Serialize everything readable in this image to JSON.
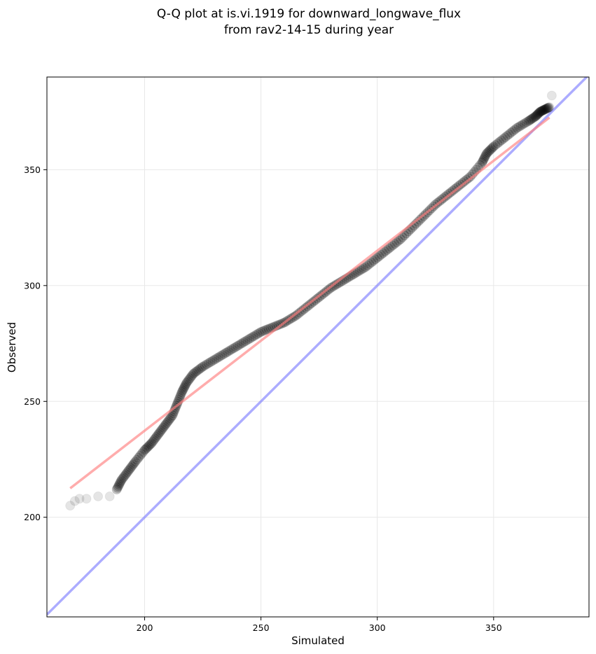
{
  "chart_data": {
    "type": "scatter",
    "title": [
      "Q-Q plot at is.vi.1919 for downward_longwave_flux",
      "from rav2-14-15 during year"
    ],
    "xlabel": "Simulated",
    "ylabel": "Observed",
    "xlim": [
      158,
      391
    ],
    "ylim": [
      157,
      390
    ],
    "xticks": [
      200,
      250,
      300,
      350
    ],
    "yticks": [
      200,
      250,
      300,
      350
    ],
    "grid": true,
    "legend": "none",
    "colors": {
      "points": "#000000",
      "fit_line": "#ff8080",
      "identity_line": "#8080ff"
    },
    "quantiles": [
      [
        168,
        205
      ],
      [
        170,
        207
      ],
      [
        172,
        208
      ],
      [
        175,
        208
      ],
      [
        180,
        209
      ],
      [
        185,
        209
      ],
      [
        188,
        212
      ],
      [
        190,
        216
      ],
      [
        193,
        220
      ],
      [
        196,
        224
      ],
      [
        200,
        229
      ],
      [
        203,
        232
      ],
      [
        206,
        236
      ],
      [
        209,
        240
      ],
      [
        212,
        244
      ],
      [
        214,
        249
      ],
      [
        216,
        254
      ],
      [
        218,
        258
      ],
      [
        221,
        262
      ],
      [
        225,
        265
      ],
      [
        230,
        268
      ],
      [
        235,
        271
      ],
      [
        240,
        274
      ],
      [
        245,
        277
      ],
      [
        250,
        280
      ],
      [
        255,
        282
      ],
      [
        260,
        284
      ],
      [
        265,
        287
      ],
      [
        270,
        291
      ],
      [
        275,
        295
      ],
      [
        280,
        299
      ],
      [
        285,
        302
      ],
      [
        290,
        305
      ],
      [
        295,
        308
      ],
      [
        300,
        312
      ],
      [
        305,
        316
      ],
      [
        310,
        320
      ],
      [
        315,
        325
      ],
      [
        320,
        330
      ],
      [
        325,
        335
      ],
      [
        330,
        339
      ],
      [
        335,
        343
      ],
      [
        340,
        347
      ],
      [
        345,
        353
      ],
      [
        347,
        357
      ],
      [
        350,
        360
      ],
      [
        355,
        364
      ],
      [
        360,
        368
      ],
      [
        365,
        371
      ],
      [
        368,
        373
      ],
      [
        370,
        375
      ],
      [
        372,
        376
      ],
      [
        374,
        377
      ],
      [
        375,
        382
      ]
    ],
    "fit_line": {
      "x": [
        168,
        374
      ],
      "y": [
        212.5,
        372.5
      ]
    },
    "identity_line": {
      "x": [
        158,
        391
      ],
      "y": [
        158,
        391
      ]
    }
  }
}
